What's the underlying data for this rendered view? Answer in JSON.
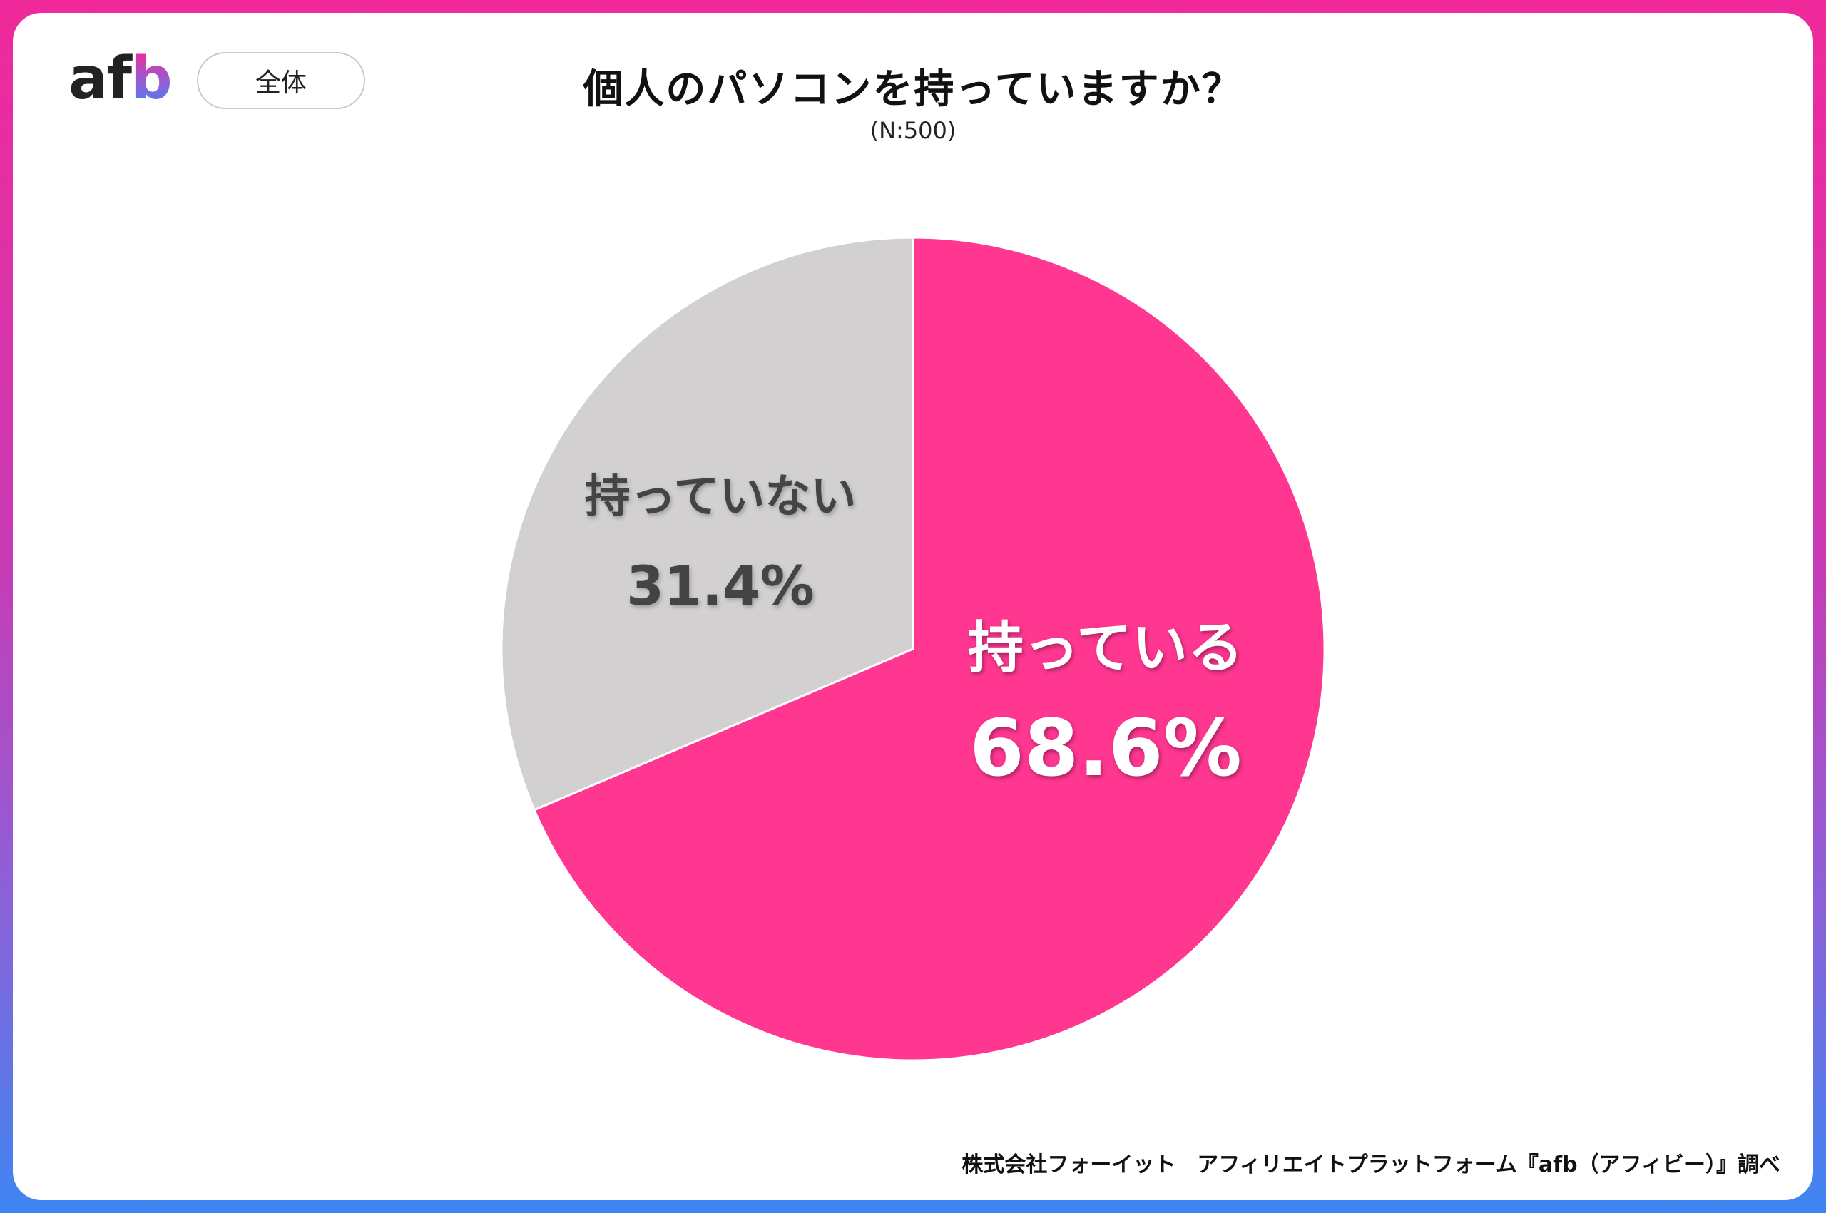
{
  "brand": {
    "logo": {
      "a": "a",
      "f": "f",
      "b": "b"
    },
    "colors": {
      "pink": "#ff3791",
      "gray": "#d3d0d2",
      "dark_label": "#444444",
      "light_label": "#ffffff"
    }
  },
  "segment_tag": "全体",
  "title": "個人のパソコンを持っていますか？",
  "subtitle": "(N:500)",
  "chart_data": {
    "type": "pie",
    "title": "個人のパソコンを持っていますか？",
    "subtitle": "(N:500)",
    "start_angle_deg": 0,
    "direction": "clockwise",
    "slices": [
      {
        "label": "持っている",
        "value": 68.6,
        "value_label": "68.6%",
        "color": "#ff3791",
        "text_color": "#ffffff"
      },
      {
        "label": "持っていない",
        "value": 31.4,
        "value_label": "31.4%",
        "color": "#d3d0d2",
        "text_color": "#444444"
      }
    ]
  },
  "footer": "株式会社フォーイット　アフィリエイトプラットフォーム『afb（アフィビー）』調べ"
}
